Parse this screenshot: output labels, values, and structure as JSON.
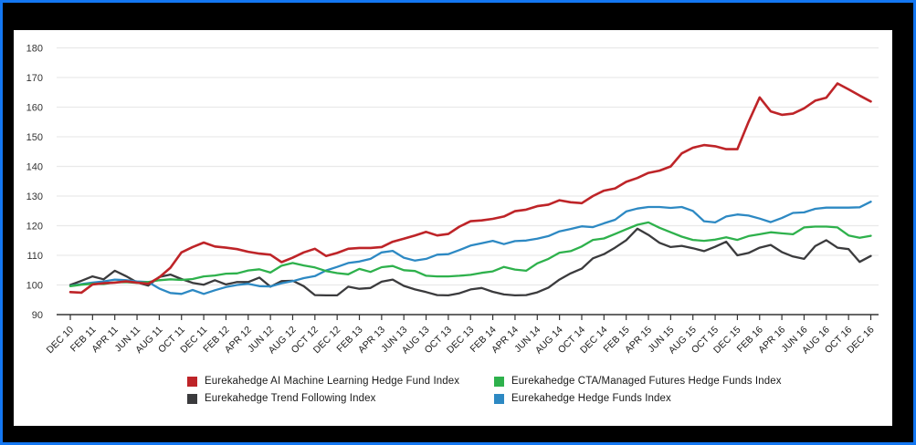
{
  "frame": {
    "outer_background": "#000000",
    "border_color": "#1377f2",
    "panel_background": "#ffffff",
    "gridline_color": "#e9e9e9",
    "axis_color": "#333333"
  },
  "chart_data": {
    "type": "line",
    "title": "",
    "xlabel": "",
    "ylabel": "",
    "ylim": [
      90,
      180
    ],
    "y_ticks": [
      90,
      100,
      110,
      120,
      130,
      140,
      150,
      160,
      170,
      180
    ],
    "grid": "horizontal",
    "legend_position": "bottom",
    "x_is_monthly": true,
    "x_tick_step_months": 2,
    "x_tick_labels": [
      "DEC 10",
      "FEB 11",
      "APR 11",
      "JUN 11",
      "AUG 11",
      "OCT 11",
      "DEC 11",
      "FEB 12",
      "APR 12",
      "JUN 12",
      "AUG 12",
      "OCT 12",
      "DEC 12",
      "FEB 13",
      "APR 13",
      "JUN 13",
      "AUG 13",
      "OCT 13",
      "DEC 13",
      "FEB 14",
      "APR 14",
      "JUN 14",
      "AUG 14",
      "OCT 14",
      "DEC 14",
      "FEB 15",
      "APR 15",
      "JUN 15",
      "AUG 15",
      "OCT 15",
      "DEC 15",
      "FEB 16",
      "APR 16",
      "JUN 16",
      "AUG 16",
      "OCT 16",
      "DEC 16"
    ],
    "series": [
      {
        "name": "Eurekahedge AI Machine Learning Hedge Fund Index",
        "color": "#be2428",
        "values": [
          97.6,
          97.4,
          100.2,
          100.6,
          100.8,
          101.2,
          100.8,
          100.4,
          102.6,
          105.8,
          111.0,
          112.8,
          114.3,
          113.0,
          112.6,
          112.1,
          111.2,
          110.6,
          110.2,
          107.7,
          109.2,
          111.0,
          112.2,
          109.8,
          110.8,
          112.2,
          112.5,
          112.5,
          112.8,
          114.6,
          115.6,
          116.7,
          117.9,
          116.7,
          117.2,
          119.7,
          121.5,
          121.8,
          122.3,
          123.1,
          124.9,
          125.4,
          126.6,
          127.1,
          128.6,
          127.9,
          127.6,
          130.0,
          131.8,
          132.6,
          134.8,
          136.1,
          137.8,
          138.6,
          140.0,
          144.4,
          146.3,
          147.2,
          146.8,
          145.8,
          145.8,
          155.0,
          163.3,
          158.6,
          157.4,
          157.8,
          159.6,
          162.2,
          163.2,
          168.0,
          166.0,
          163.9,
          161.9
        ]
      },
      {
        "name": "Eurekahedge CTA/Managed Futures Hedge Funds Index",
        "color": "#2eb14c",
        "values": [
          99.6,
          100.1,
          100.4,
          100.3,
          100.9,
          101.0,
          100.7,
          101.0,
          101.6,
          101.9,
          101.7,
          102.0,
          102.9,
          103.2,
          103.8,
          103.9,
          104.9,
          105.3,
          104.2,
          106.5,
          107.4,
          106.6,
          105.9,
          104.7,
          104.0,
          103.6,
          105.4,
          104.4,
          106.0,
          106.4,
          105.0,
          104.7,
          103.1,
          102.9,
          102.9,
          103.1,
          103.4,
          104.1,
          104.6,
          106.1,
          105.2,
          104.8,
          107.3,
          108.8,
          110.9,
          111.4,
          113.0,
          115.2,
          115.7,
          117.2,
          118.8,
          120.3,
          121.1,
          119.3,
          117.8,
          116.3,
          115.2,
          114.9,
          115.3,
          116.1,
          115.2,
          116.5,
          117.1,
          117.8,
          117.4,
          117.1,
          119.4,
          119.7,
          119.7,
          119.4,
          116.7,
          115.9,
          116.6
        ]
      },
      {
        "name": "Eurekahedge Trend Following Index",
        "color": "#3b3b3d",
        "values": [
          100.0,
          101.4,
          102.9,
          101.9,
          104.8,
          103.0,
          100.9,
          99.8,
          102.7,
          103.5,
          102.0,
          100.7,
          100.1,
          101.6,
          100.2,
          101.0,
          101.0,
          102.5,
          99.4,
          101.3,
          101.4,
          99.6,
          96.6,
          96.5,
          96.5,
          99.4,
          98.7,
          99.0,
          101.1,
          101.8,
          99.7,
          98.5,
          97.6,
          96.6,
          96.5,
          97.2,
          98.5,
          99.0,
          97.7,
          96.8,
          96.5,
          96.6,
          97.5,
          99.1,
          101.8,
          103.9,
          105.5,
          109.0,
          110.4,
          112.6,
          115.1,
          119.0,
          116.9,
          114.2,
          112.8,
          113.2,
          112.4,
          111.4,
          112.9,
          114.6,
          110.0,
          110.8,
          112.6,
          113.5,
          111.1,
          109.6,
          108.8,
          113.1,
          115.1,
          112.6,
          112.1,
          107.8,
          109.8
        ]
      },
      {
        "name": "Eurekahedge Hedge Funds Index",
        "color": "#2d89c3",
        "values": [
          99.7,
          100.3,
          100.8,
          101.2,
          101.8,
          101.6,
          101.2,
          101.0,
          98.8,
          97.3,
          97.0,
          98.3,
          97.0,
          98.2,
          99.3,
          100.0,
          100.4,
          99.6,
          99.5,
          100.6,
          101.3,
          102.3,
          103.0,
          104.9,
          106.1,
          107.4,
          107.9,
          108.8,
          111.0,
          111.5,
          109.2,
          108.2,
          108.8,
          110.2,
          110.4,
          111.8,
          113.3,
          114.1,
          114.9,
          113.8,
          114.8,
          115.0,
          115.6,
          116.5,
          118.1,
          118.9,
          119.8,
          119.5,
          120.8,
          122.0,
          124.8,
          125.8,
          126.3,
          126.3,
          126.0,
          126.3,
          125.0,
          121.5,
          121.1,
          123.1,
          123.8,
          123.4,
          122.4,
          121.2,
          122.6,
          124.3,
          124.5,
          125.7,
          126.1,
          126.1,
          126.1,
          126.2,
          128.1
        ]
      }
    ]
  },
  "legend": {
    "items": [
      {
        "label": "Eurekahedge AI Machine Learning Hedge Fund Index"
      },
      {
        "label": "Eurekahedge CTA/Managed Futures Hedge Funds Index"
      },
      {
        "label": "Eurekahedge Trend Following Index"
      },
      {
        "label": "Eurekahedge Hedge Funds Index"
      }
    ]
  }
}
